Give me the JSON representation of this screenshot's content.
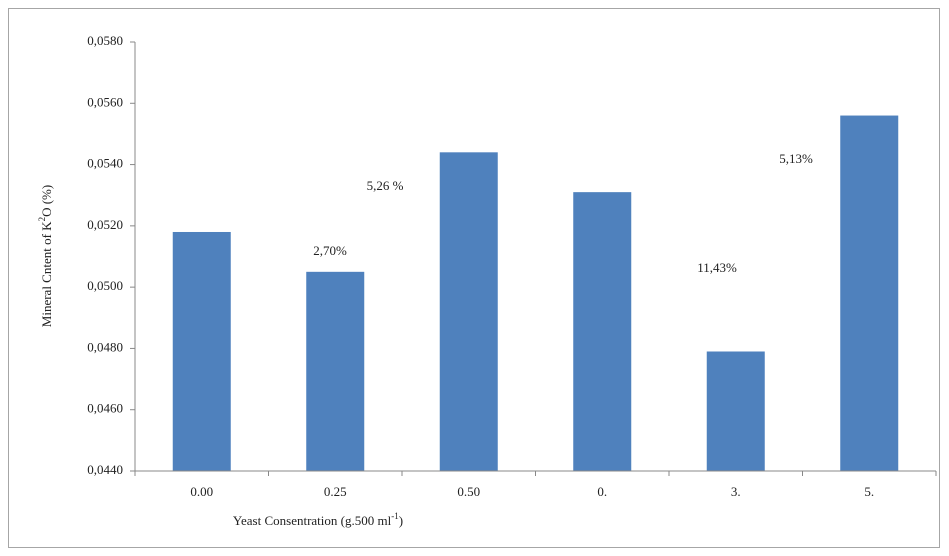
{
  "chart_data": {
    "type": "bar",
    "y_label": [
      "Mineral Cntent of  K",
      "2",
      "O (%)"
    ],
    "x_label": [
      "Yeast Consentration (g.500  ml",
      "-1",
      ")"
    ],
    "categories": [
      "0.00",
      "0.25",
      "0.50",
      "0.",
      "3.",
      "5."
    ],
    "values": [
      0.0518,
      0.0505,
      0.0544,
      0.0531,
      0.0479,
      0.0556
    ],
    "color": "#4f81bd",
    "annotations": [
      "2,70%",
      "5,26  %",
      "11,43%",
      "5,13%"
    ],
    "ylim": [
      0.044,
      0.058
    ],
    "yticks": [
      {
        "value": 0.044,
        "label": "0,0440"
      },
      {
        "value": 0.046,
        "label": "0,0460"
      },
      {
        "value": 0.048,
        "label": "0,0480"
      },
      {
        "value": 0.05,
        "label": "0,0500"
      },
      {
        "value": 0.052,
        "label": "0,0520"
      },
      {
        "value": 0.054,
        "label": "0,0540"
      },
      {
        "value": 0.056,
        "label": "0,0560"
      },
      {
        "value": 0.058,
        "label": "0,0580"
      }
    ]
  }
}
